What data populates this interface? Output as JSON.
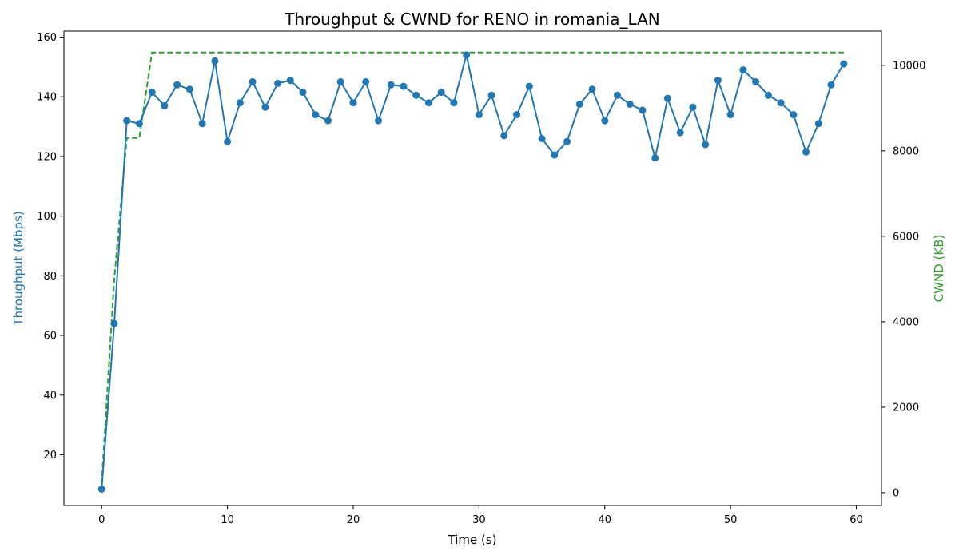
{
  "chart_data": {
    "type": "line",
    "title": "Throughput & CWND for RENO in romania_LAN",
    "xlabel": "Time (s)",
    "ylabel_left": "Throughput (Mbps)",
    "ylabel_right": "CWND (KB)",
    "xlim": [
      -3,
      62
    ],
    "ylim_left": [
      3,
      162
    ],
    "ylim_right": [
      -300,
      10800
    ],
    "x_ticks": [
      0,
      10,
      20,
      30,
      40,
      50,
      60
    ],
    "y_left_ticks": [
      20,
      40,
      60,
      80,
      100,
      120,
      140,
      160
    ],
    "y_right_ticks": [
      0,
      2000,
      4000,
      6000,
      8000,
      10000
    ],
    "grid": false,
    "colors": {
      "throughput": "#1f77b4",
      "cwnd": "#2ca02c"
    },
    "series": [
      {
        "axis": "left",
        "style": "solid-with-markers",
        "x": [
          0,
          1,
          2,
          3,
          4,
          5,
          6,
          7,
          8,
          9,
          10,
          11,
          12,
          13,
          14,
          15,
          16,
          17,
          18,
          19,
          20,
          21,
          22,
          23,
          24,
          25,
          26,
          27,
          28,
          29,
          30,
          31,
          32,
          33,
          34,
          35,
          36,
          37,
          38,
          39,
          40,
          41,
          42,
          43,
          44,
          45,
          46,
          47,
          48,
          49,
          50,
          51,
          52,
          53,
          54,
          55,
          56,
          57,
          58,
          59
        ],
        "values": [
          8.5,
          64,
          132,
          131,
          141.5,
          137,
          144,
          142.5,
          131,
          152,
          125,
          138,
          145,
          136.5,
          144.5,
          145.5,
          141.5,
          134,
          132,
          145,
          138,
          145,
          132,
          144,
          143.5,
          140.5,
          138,
          141.5,
          138,
          154,
          134,
          140.5,
          127,
          134,
          143.5,
          126,
          120.5,
          125,
          137.5,
          142.5,
          132,
          140.5,
          137.5,
          135.5,
          119.5,
          139.5,
          128,
          136.5,
          124,
          145.5,
          134,
          149,
          145,
          140.5,
          138,
          134,
          121.5,
          131,
          144,
          151
        ]
      },
      {
        "axis": "right",
        "style": "dashed",
        "x": [
          0,
          1,
          2,
          3,
          4,
          5,
          6,
          7,
          8,
          9,
          10,
          11,
          12,
          13,
          14,
          15,
          16,
          17,
          18,
          19,
          20,
          21,
          22,
          23,
          24,
          25,
          26,
          27,
          28,
          29,
          30,
          31,
          32,
          33,
          34,
          35,
          36,
          37,
          38,
          39,
          40,
          41,
          42,
          43,
          44,
          45,
          46,
          47,
          48,
          49,
          50,
          51,
          52,
          53,
          54,
          55,
          56,
          57,
          58,
          59
        ],
        "values": [
          200,
          5000,
          8300,
          8300,
          10300,
          10300,
          10300,
          10300,
          10300,
          10300,
          10300,
          10300,
          10300,
          10300,
          10300,
          10300,
          10300,
          10300,
          10300,
          10300,
          10300,
          10300,
          10300,
          10300,
          10300,
          10300,
          10300,
          10300,
          10300,
          10300,
          10300,
          10300,
          10300,
          10300,
          10300,
          10300,
          10300,
          10300,
          10300,
          10300,
          10300,
          10300,
          10300,
          10300,
          10300,
          10300,
          10300,
          10300,
          10300,
          10300,
          10300,
          10300,
          10300,
          10300,
          10300,
          10300,
          10300,
          10300,
          10300,
          10300
        ]
      }
    ]
  }
}
